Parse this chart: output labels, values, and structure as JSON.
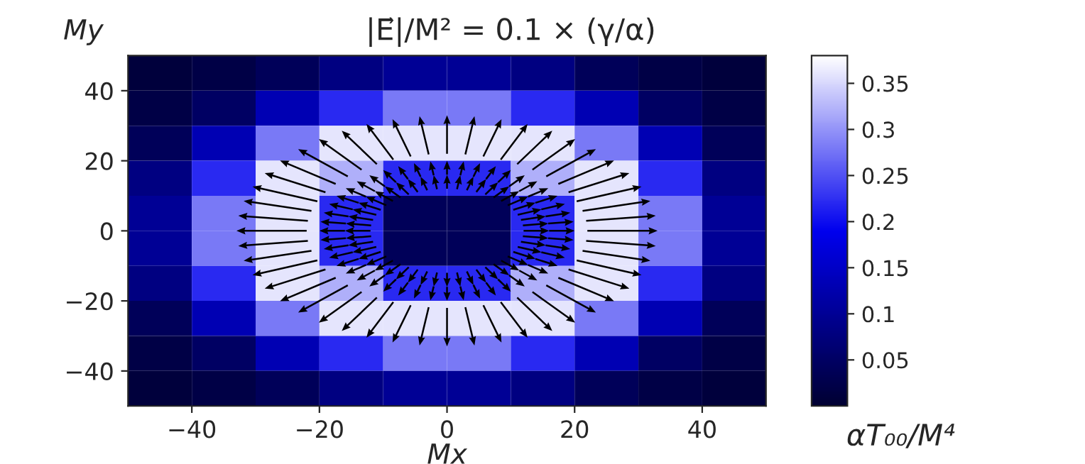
{
  "chart_data": {
    "type": "heatmap",
    "title": "|E⃗|/M² = 0.1 × (γ/α)",
    "xlabel": "Mx",
    "ylabel": "My",
    "clabel": "αT₀₀/M⁴",
    "xlim": [
      -50,
      50
    ],
    "ylim": [
      -50,
      50
    ],
    "xticks": [
      {
        "value": -40,
        "label": "−40"
      },
      {
        "value": -20,
        "label": "−20"
      },
      0,
      20,
      40
    ],
    "yticks": [
      {
        "value": -40,
        "label": "−40"
      },
      {
        "value": -20,
        "label": "−20"
      },
      0,
      20,
      40
    ],
    "clim": [
      0,
      0.38
    ],
    "cticks": [
      0.05,
      0.1,
      0.15,
      0.2,
      0.25,
      0.3,
      0.35
    ],
    "cells": [
      [
        0.01,
        0.02,
        0.04,
        0.08,
        0.1,
        0.1,
        0.08,
        0.04,
        0.02,
        0.01
      ],
      [
        0.02,
        0.05,
        0.13,
        0.22,
        0.28,
        0.28,
        0.22,
        0.13,
        0.05,
        0.02
      ],
      [
        0.04,
        0.13,
        0.28,
        0.36,
        0.36,
        0.36,
        0.36,
        0.28,
        0.13,
        0.04
      ],
      [
        0.08,
        0.22,
        0.36,
        0.32,
        0.22,
        0.22,
        0.32,
        0.36,
        0.22,
        0.08
      ],
      [
        0.1,
        0.28,
        0.36,
        0.22,
        0.04,
        0.04,
        0.22,
        0.36,
        0.28,
        0.1
      ],
      [
        0.1,
        0.28,
        0.36,
        0.22,
        0.04,
        0.04,
        0.22,
        0.36,
        0.28,
        0.1
      ],
      [
        0.08,
        0.22,
        0.36,
        0.32,
        0.22,
        0.22,
        0.32,
        0.36,
        0.22,
        0.08
      ],
      [
        0.04,
        0.13,
        0.28,
        0.36,
        0.36,
        0.36,
        0.36,
        0.28,
        0.13,
        0.04
      ],
      [
        0.02,
        0.05,
        0.13,
        0.22,
        0.28,
        0.28,
        0.22,
        0.13,
        0.05,
        0.02
      ],
      [
        0.01,
        0.02,
        0.04,
        0.08,
        0.1,
        0.1,
        0.08,
        0.04,
        0.02,
        0.01
      ]
    ]
  }
}
